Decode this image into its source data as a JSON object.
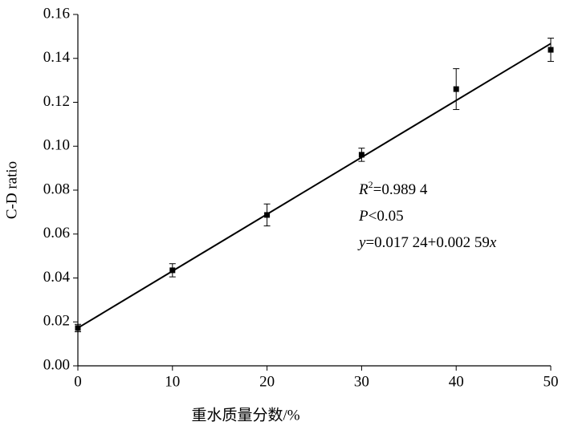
{
  "chart_data": {
    "type": "scatter",
    "x_label": "重水质量分数/%",
    "y_label": "C-D ratio",
    "x": [
      0,
      10,
      20,
      30,
      40,
      50
    ],
    "series": [
      {
        "color": "#000000",
        "values": [
          0.0172,
          0.0435,
          0.0687,
          0.0961,
          0.126,
          0.1439
        ],
        "errors": [
          0.0017,
          0.003,
          0.005,
          0.003,
          0.0093,
          0.0053
        ]
      }
    ],
    "fit_line": {
      "intercept": 0.01724,
      "slope": 0.00259,
      "color": "#000000"
    },
    "annotations": [
      [
        {
          "text": "R",
          "italic": true
        },
        {
          "text": "2",
          "sup": true
        },
        {
          "text": "=0.989 4"
        }
      ],
      [
        {
          "text": "P",
          "italic": true
        },
        {
          "text": "<0.05"
        }
      ],
      [
        {
          "text": "y",
          "italic": true
        },
        {
          "text": "=0.017 24+0.002 59"
        },
        {
          "text": "x",
          "italic": true
        }
      ]
    ],
    "xlim": [
      0,
      50
    ],
    "xticks": [
      0,
      10,
      20,
      30,
      40,
      50
    ],
    "ylim": [
      0,
      0.16
    ],
    "yticks": [
      {
        "value": 0,
        "label": "0.00"
      },
      {
        "value": 0.02,
        "label": "0.02"
      },
      {
        "value": 0.04,
        "label": "0.04"
      },
      {
        "value": 0.06,
        "label": "0.06"
      },
      {
        "value": 0.08,
        "label": "0.08"
      },
      {
        "value": 0.1,
        "label": "0.10"
      },
      {
        "value": 0.12,
        "label": "0.12"
      },
      {
        "value": 0.14,
        "label": "0.14"
      },
      {
        "value": 0.16,
        "label": "0.16"
      }
    ]
  }
}
